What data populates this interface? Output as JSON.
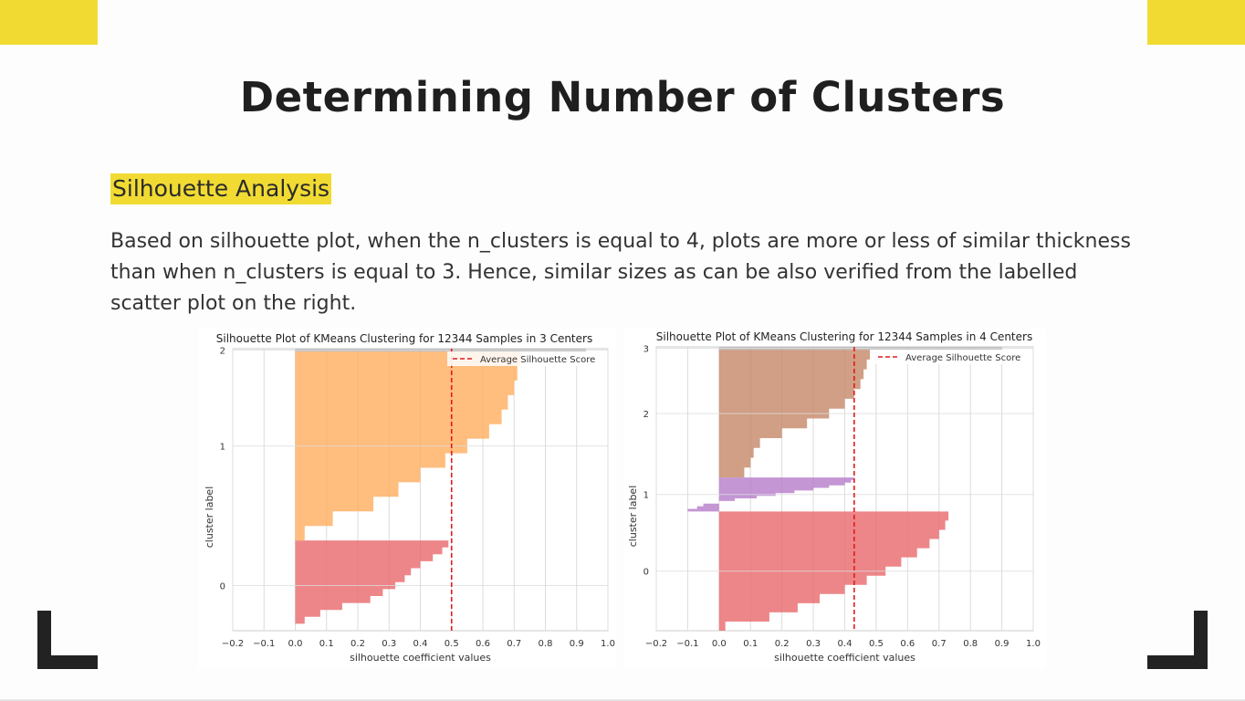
{
  "slide": {
    "title": "Determining Number of Clusters",
    "subtitle": "Silhouette Analysis",
    "body": "Based on silhouette plot, when the n_clusters is equal to 4, plots are more or less of similar thickness than when n_clusters is equal to 3. Hence, similar sizes as can be also verified from the labelled scatter plot on the right.",
    "accent_color": "#f1db33"
  },
  "chart_data": [
    {
      "type": "bar",
      "orientation": "horizontal",
      "title": "Silhouette Plot of KMeans Clustering for 12344 Samples in 3 Centers",
      "xlabel": "silhouette coefficient values",
      "ylabel": "cluster label",
      "xlim": [
        -0.2,
        1.0
      ],
      "xticks": [
        "−0.2",
        "−0.1",
        "0.0",
        "0.1",
        "0.2",
        "0.3",
        "0.4",
        "0.5",
        "0.6",
        "0.7",
        "0.8",
        "0.9",
        "1.0"
      ],
      "yticks": [
        "0",
        "1",
        "2"
      ],
      "legend": "Average Silhouette Score",
      "legend_location": "top-right",
      "average_score": 0.5,
      "series": [
        {
          "name": "0",
          "color": "#e8686b",
          "fraction": 0.32,
          "profile": [
            0.49,
            0.47,
            0.44,
            0.4,
            0.37,
            0.35,
            0.32,
            0.28,
            0.24,
            0.15,
            0.08,
            0.03,
            0.0
          ]
        },
        {
          "name": "1",
          "color": "#ffac5e",
          "fraction": 0.67,
          "profile": [
            0.72,
            0.71,
            0.7,
            0.68,
            0.66,
            0.62,
            0.55,
            0.48,
            0.4,
            0.33,
            0.25,
            0.12,
            0.03
          ]
        },
        {
          "name": "2",
          "color": "#b0b0b0",
          "fraction": 0.01,
          "profile": [
            0.93,
            0.93,
            0.93,
            0.93,
            0.93,
            0.93,
            0.93,
            0.93,
            0.93,
            0.93,
            0.93,
            0.93,
            0.93
          ]
        }
      ]
    },
    {
      "type": "bar",
      "orientation": "horizontal",
      "title": "Silhouette Plot of KMeans Clustering for 12344 Samples in 4 Centers",
      "xlabel": "silhouette coefficient values",
      "ylabel": "cluster label",
      "xlim": [
        -0.2,
        1.0
      ],
      "xticks": [
        "−0.2",
        "−0.1",
        "0.0",
        "0.1",
        "0.2",
        "0.3",
        "0.4",
        "0.5",
        "0.6",
        "0.7",
        "0.8",
        "0.9",
        "1.0"
      ],
      "yticks": [
        "0",
        "1",
        "2",
        "3"
      ],
      "legend": "Average Silhouette Score",
      "legend_location": "top-right",
      "average_score": 0.43,
      "series": [
        {
          "name": "0",
          "color": "#e8686b",
          "fraction": 0.42,
          "profile": [
            0.73,
            0.72,
            0.7,
            0.67,
            0.63,
            0.58,
            0.53,
            0.47,
            0.4,
            0.32,
            0.25,
            0.16,
            0.02
          ]
        },
        {
          "name": "1",
          "color": "#b57cc9",
          "fraction": 0.12,
          "profile": [
            0.43,
            0.42,
            0.4,
            0.35,
            0.3,
            0.24,
            0.18,
            0.12,
            0.05,
            0.0,
            -0.05,
            -0.07,
            -0.1
          ]
        },
        {
          "name": "2",
          "color": "#c48766",
          "fraction": 0.45,
          "profile": [
            0.48,
            0.47,
            0.46,
            0.45,
            0.43,
            0.4,
            0.35,
            0.28,
            0.2,
            0.13,
            0.11,
            0.1,
            0.08
          ]
        },
        {
          "name": "3",
          "color": "#b0b0b0",
          "fraction": 0.01,
          "profile": [
            0.9,
            0.9,
            0.9,
            0.9,
            0.9,
            0.9,
            0.9,
            0.9,
            0.9,
            0.9,
            0.9,
            0.9,
            0.9
          ]
        }
      ]
    }
  ]
}
